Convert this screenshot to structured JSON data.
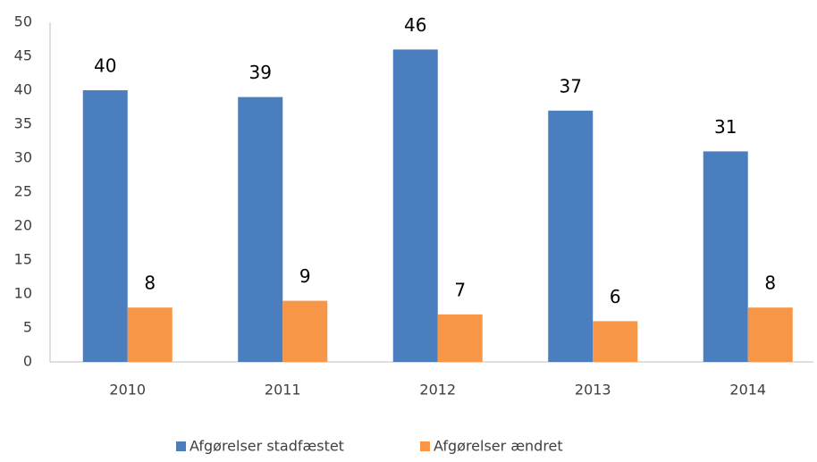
{
  "chart_data": {
    "type": "bar",
    "categories": [
      "2010",
      "2011",
      "2012",
      "2013",
      "2014"
    ],
    "series": [
      {
        "name": "Afgørelser stadfæstet",
        "color": "#4a7ebf",
        "values": [
          40,
          39,
          46,
          37,
          31
        ]
      },
      {
        "name": "Afgørelser ændret",
        "color": "#f79646",
        "values": [
          8,
          9,
          7,
          6,
          8
        ]
      }
    ],
    "ylim": [
      0,
      50
    ],
    "yticks": [
      0,
      5,
      10,
      15,
      20,
      25,
      30,
      35,
      40,
      45,
      50
    ],
    "grid": false,
    "legend": "bottom"
  }
}
